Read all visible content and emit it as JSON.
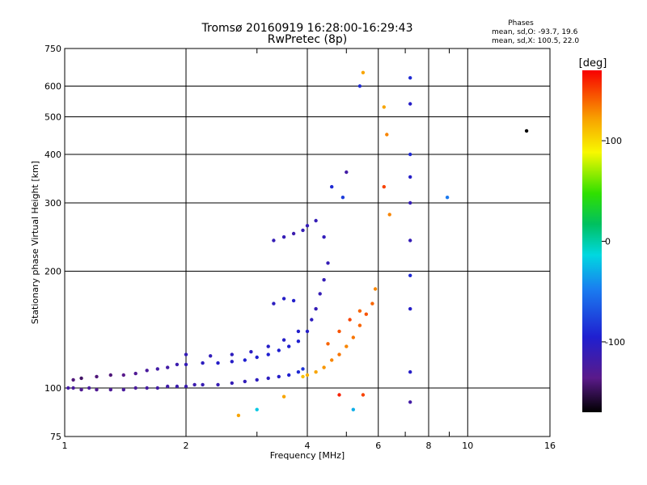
{
  "chart_data": {
    "type": "scatter",
    "title_line1": "Tromsø 20160919 16:28:00-16:29:43",
    "title_line2": "RwPretec (8p)",
    "stats": {
      "title": "Phases",
      "line1": "mean, sd,O: -93.7, 19.6",
      "line2": "mean, sd,X: 100.5, 22.0"
    },
    "xlabel": "Frequency [MHz]",
    "ylabel": "Stationary phase Virtual Height [km]",
    "x_scale": "log",
    "y_scale": "log",
    "xlim": [
      1,
      16
    ],
    "ylim": [
      75,
      750
    ],
    "x_ticks": [
      1,
      2,
      4,
      6,
      8,
      10,
      16
    ],
    "x_minor_ticks": [
      3,
      5,
      7,
      9
    ],
    "y_ticks": [
      75,
      100,
      200,
      300,
      400,
      500,
      600,
      750
    ],
    "grid": true,
    "colorbar": {
      "label": "[deg]",
      "range": [
        -170,
        170
      ],
      "ticks": [
        100,
        0,
        -100
      ]
    },
    "series": [
      {
        "trace": "O lower",
        "points": [
          [
            1.02,
            100,
            -120
          ],
          [
            1.05,
            100,
            -125
          ],
          [
            1.1,
            99,
            -130
          ],
          [
            1.15,
            100,
            -125
          ],
          [
            1.2,
            99,
            -130
          ],
          [
            1.3,
            99,
            -128
          ],
          [
            1.4,
            99,
            -125
          ],
          [
            1.5,
            100,
            -125
          ],
          [
            1.6,
            100,
            -122
          ],
          [
            1.7,
            100,
            -120
          ],
          [
            1.8,
            101,
            -118
          ],
          [
            1.9,
            101,
            -115
          ],
          [
            2.0,
            101,
            -115
          ],
          [
            2.1,
            102,
            -115
          ],
          [
            2.2,
            102,
            -112
          ],
          [
            2.4,
            102,
            -112
          ],
          [
            2.6,
            103,
            -110
          ],
          [
            2.8,
            104,
            -108
          ],
          [
            3.0,
            105,
            -105
          ],
          [
            3.2,
            106,
            -105
          ],
          [
            3.4,
            107,
            -100
          ],
          [
            3.6,
            108,
            -95
          ],
          [
            3.8,
            110,
            -90
          ],
          [
            3.9,
            112,
            -85
          ]
        ]
      },
      {
        "trace": "O upper",
        "points": [
          [
            1.05,
            105,
            -140
          ],
          [
            1.1,
            106,
            -145
          ],
          [
            1.2,
            107,
            -140
          ],
          [
            1.3,
            108,
            -140
          ],
          [
            1.4,
            108,
            -135
          ],
          [
            1.5,
            109,
            -130
          ],
          [
            1.6,
            111,
            -125
          ],
          [
            1.7,
            112,
            -120
          ],
          [
            1.8,
            113,
            -120
          ],
          [
            1.9,
            115,
            -115
          ],
          [
            2.0,
            115,
            -110
          ],
          [
            2.2,
            116,
            -105
          ],
          [
            2.4,
            116,
            -100
          ],
          [
            2.6,
            117,
            -100
          ],
          [
            2.8,
            118,
            -95
          ],
          [
            3.0,
            120,
            -95
          ],
          [
            3.2,
            122,
            -95
          ],
          [
            3.4,
            125,
            -95
          ],
          [
            3.6,
            128,
            -95
          ],
          [
            3.8,
            132,
            -95
          ],
          [
            4.0,
            140,
            -100
          ],
          [
            4.1,
            150,
            -105
          ],
          [
            4.2,
            160,
            -110
          ],
          [
            4.3,
            175,
            -110
          ],
          [
            4.4,
            190,
            -110
          ],
          [
            4.5,
            210,
            -110
          ]
        ]
      },
      {
        "trace": "O extra",
        "points": [
          [
            2.0,
            122,
            -110
          ],
          [
            2.3,
            121,
            -108
          ],
          [
            2.6,
            122,
            -106
          ],
          [
            2.9,
            124,
            -104
          ],
          [
            3.2,
            128,
            -100
          ],
          [
            3.5,
            133,
            -100
          ],
          [
            3.8,
            140,
            -98
          ],
          [
            3.3,
            165,
            -105
          ],
          [
            3.5,
            170,
            -100
          ],
          [
            3.7,
            168,
            -98
          ],
          [
            3.3,
            240,
            -110
          ],
          [
            3.5,
            245,
            -110
          ],
          [
            3.7,
            250,
            -115
          ],
          [
            3.9,
            255,
            -110
          ],
          [
            4.0,
            262,
            -110
          ],
          [
            4.2,
            270,
            -110
          ],
          [
            4.4,
            245,
            -108
          ]
        ]
      },
      {
        "trace": "X",
        "points": [
          [
            3.9,
            107,
            110
          ],
          [
            4.0,
            108,
            115
          ],
          [
            4.2,
            110,
            120
          ],
          [
            4.4,
            113,
            125
          ],
          [
            4.6,
            118,
            130
          ],
          [
            4.8,
            122,
            135
          ],
          [
            5.0,
            128,
            130
          ],
          [
            5.2,
            135,
            135
          ],
          [
            5.4,
            145,
            140
          ],
          [
            5.6,
            155,
            145
          ],
          [
            5.8,
            165,
            140
          ],
          [
            5.9,
            180,
            130
          ],
          [
            4.5,
            130,
            140
          ],
          [
            4.8,
            140,
            145
          ],
          [
            5.1,
            150,
            150
          ],
          [
            5.4,
            158,
            140
          ]
        ]
      },
      {
        "trace": "high echoes",
        "points": [
          [
            4.6,
            330,
            -90
          ],
          [
            4.9,
            310,
            -80
          ],
          [
            5.0,
            360,
            -120
          ],
          [
            5.4,
            600,
            -90
          ],
          [
            5.5,
            650,
            120
          ],
          [
            6.2,
            330,
            150
          ],
          [
            6.4,
            280,
            130
          ],
          [
            6.2,
            530,
            120
          ],
          [
            6.3,
            450,
            130
          ],
          [
            7.2,
            630,
            -90
          ],
          [
            7.2,
            540,
            -100
          ],
          [
            7.2,
            400,
            -90
          ],
          [
            7.2,
            350,
            -100
          ],
          [
            7.2,
            300,
            -110
          ],
          [
            7.2,
            240,
            -110
          ],
          [
            7.2,
            195,
            -90
          ],
          [
            7.2,
            160,
            -100
          ],
          [
            7.2,
            110,
            -100
          ],
          [
            7.2,
            92,
            -120
          ],
          [
            8.9,
            310,
            -50
          ],
          [
            14.0,
            460,
            -170
          ],
          [
            2.7,
            85,
            120
          ],
          [
            3.0,
            88,
            -20
          ],
          [
            5.2,
            88,
            -30
          ],
          [
            4.8,
            96,
            160
          ],
          [
            5.5,
            96,
            150
          ],
          [
            3.5,
            95,
            120
          ]
        ]
      }
    ]
  }
}
